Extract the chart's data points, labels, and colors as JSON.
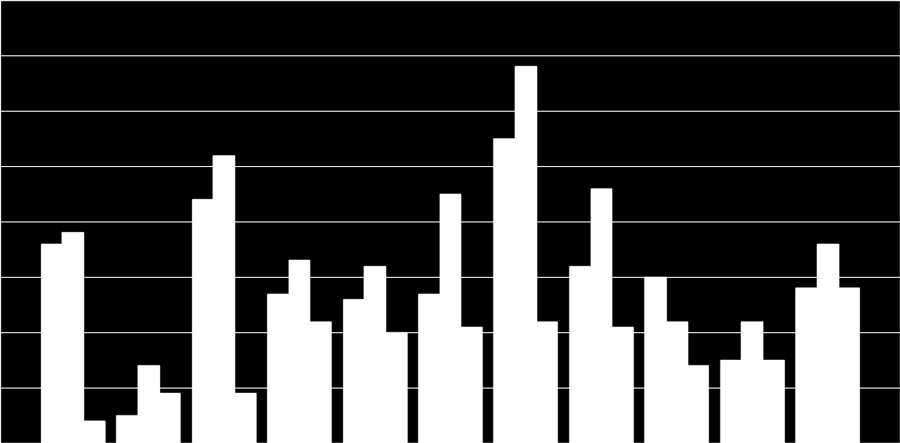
{
  "groups": 11,
  "series1": [
    36000,
    5000,
    44000,
    27000,
    26000,
    27000,
    55000,
    32000,
    30000,
    15000,
    28000
  ],
  "series2": [
    38000,
    14000,
    52000,
    33000,
    32000,
    45000,
    68000,
    46000,
    22000,
    22000,
    36000
  ],
  "series3": [
    4000,
    9000,
    9000,
    22000,
    20000,
    21000,
    22000,
    21000,
    14000,
    15000,
    28000
  ],
  "bar_color": "#ffffff",
  "background_color": "#000000",
  "grid_color": "#ffffff",
  "ylim": [
    0,
    80000
  ],
  "n_gridlines": 8,
  "bar_width": 0.28,
  "figsize": [
    10.07,
    4.96
  ],
  "dpi": 100
}
